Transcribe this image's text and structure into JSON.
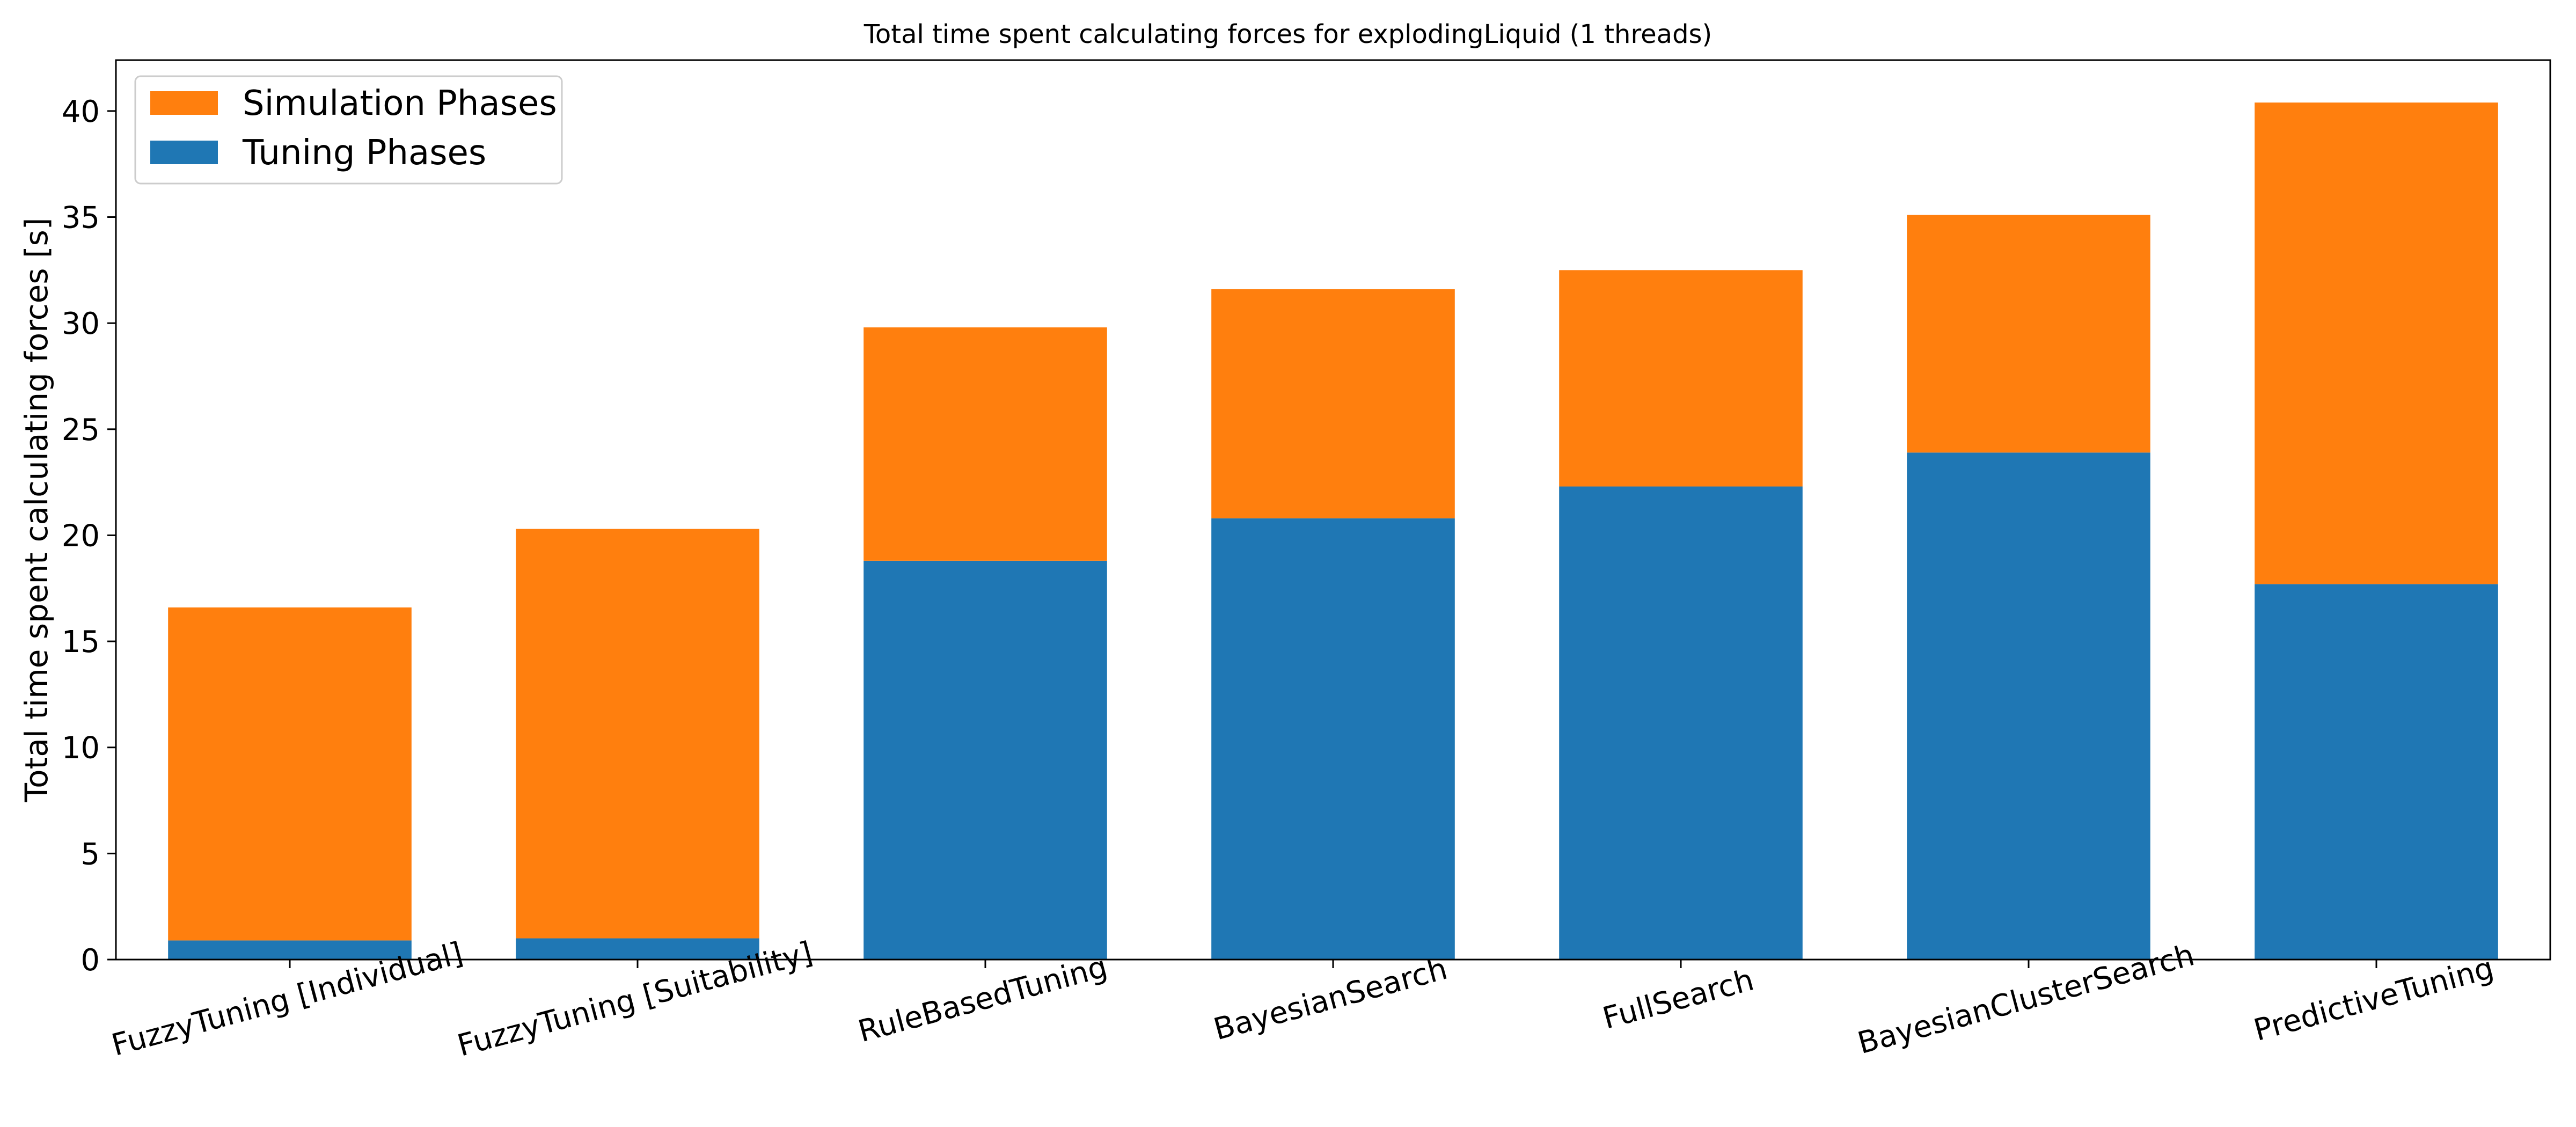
{
  "chart_data": {
    "type": "bar",
    "stacked": true,
    "title": "Total time spent calculating forces for explodingLiquid (1 threads)",
    "xlabel": "",
    "ylabel": "Total time spent calculating forces [s]",
    "ylim": [
      0,
      42.4
    ],
    "yticks": [
      0,
      5,
      10,
      15,
      20,
      25,
      30,
      35,
      40
    ],
    "legend_position": "top-left",
    "categories": [
      "FuzzyTuning [Individual]",
      "FuzzyTuning [Suitability]",
      "RuleBasedTuning",
      "BayesianSearch",
      "FullSearch",
      "BayesianClusterSearch",
      "PredictiveTuning"
    ],
    "series": [
      {
        "name": "Tuning Phases",
        "color": "#1f77b4",
        "values": [
          0.9,
          1.0,
          18.8,
          20.8,
          22.3,
          23.9,
          17.7
        ]
      },
      {
        "name": "Simulation Phases",
        "color": "#ff7f0e",
        "values": [
          15.7,
          19.3,
          11.0,
          10.8,
          10.2,
          11.2,
          22.7
        ]
      }
    ],
    "legend": [
      "Simulation Phases",
      "Tuning Phases"
    ]
  }
}
